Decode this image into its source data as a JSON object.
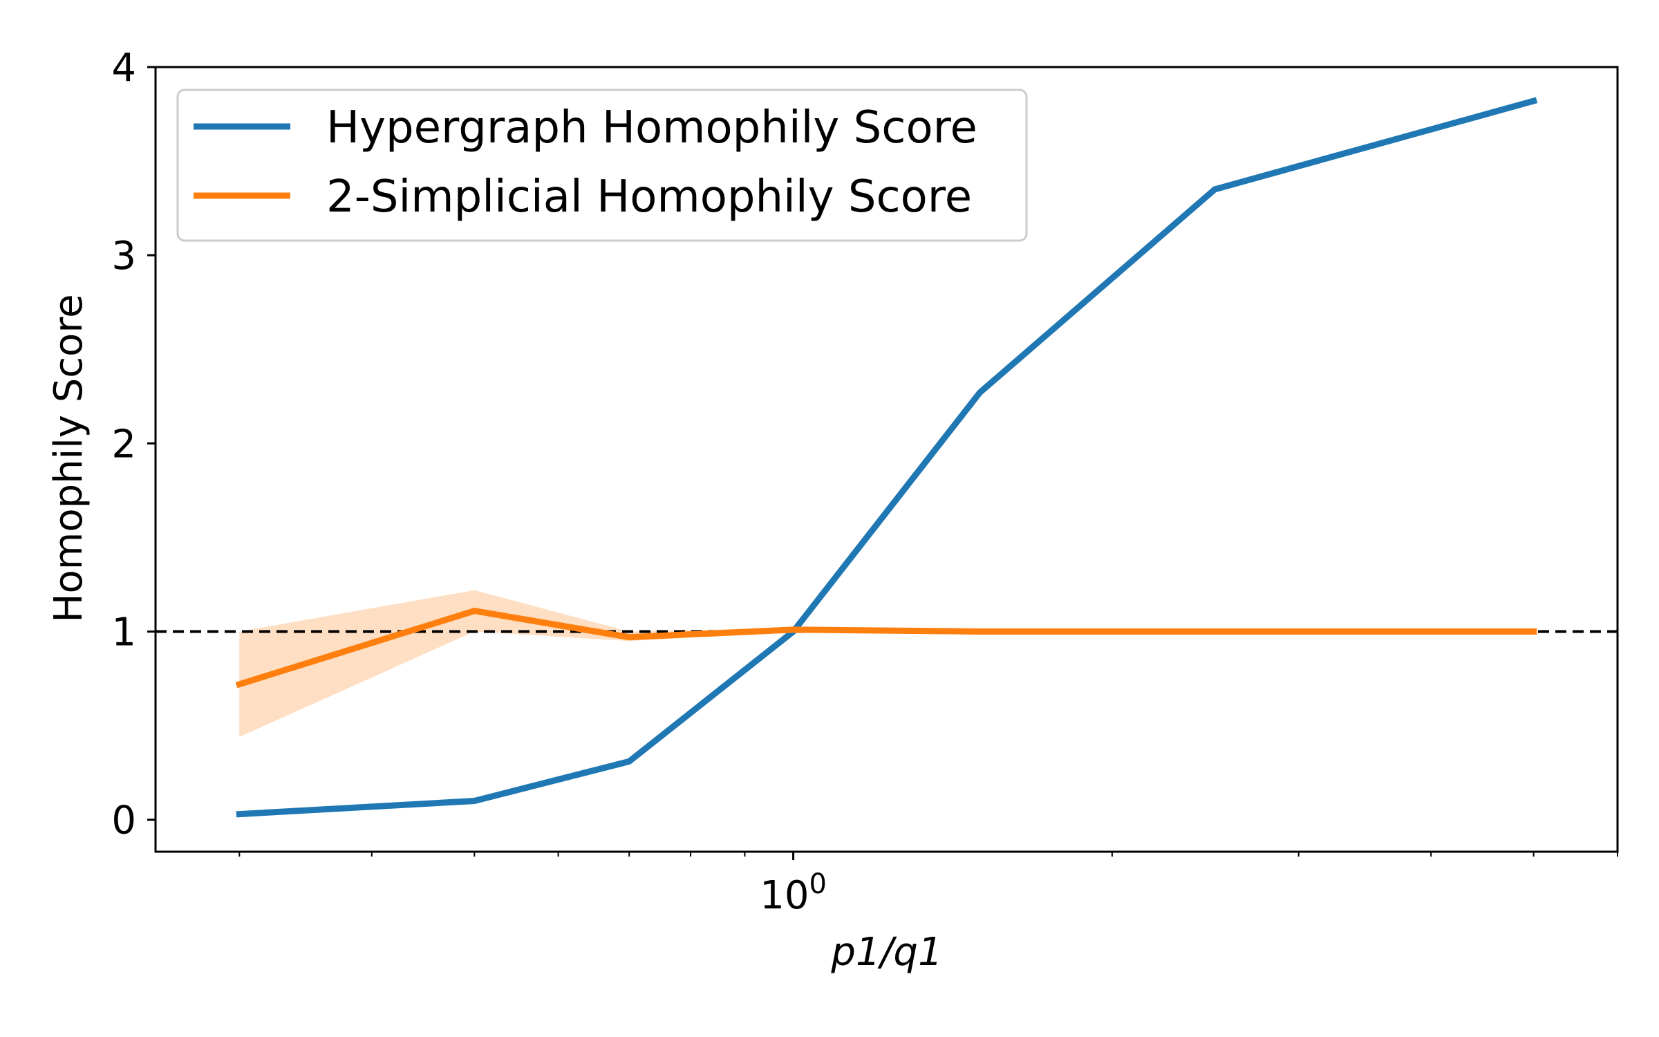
{
  "chart_data": {
    "type": "line",
    "title": "",
    "xlabel": "p1/q1",
    "ylabel": "Homophily Score",
    "xscale": "log",
    "xlim": [
      0.25,
      6.0
    ],
    "ylim": [
      -0.17,
      4.0
    ],
    "x_tick_labels": [
      {
        "value": 1,
        "base": "10",
        "exponent": "0"
      }
    ],
    "y_ticks": [
      0,
      1,
      2,
      3,
      4
    ],
    "y_tick_labels": [
      "0",
      "1",
      "2",
      "3",
      "4"
    ],
    "grid": false,
    "legend_position": "top-left",
    "reference_line": {
      "y": 1,
      "style": "dashed",
      "color": "#000000"
    },
    "x": [
      0.3,
      0.5,
      0.7,
      1.0,
      1.5,
      2.5,
      5.0
    ],
    "series": [
      {
        "name": "Hypergraph Homophily Score",
        "color": "#1f77b4",
        "values": [
          0.03,
          0.1,
          0.31,
          1.0,
          2.27,
          3.35,
          3.82
        ]
      },
      {
        "name": "2-Simplicial Homophily Score",
        "color": "#ff7f0e",
        "values": [
          0.72,
          1.11,
          0.97,
          1.01,
          1.0,
          1.0,
          1.0
        ],
        "band_lower": [
          0.44,
          1.0,
          0.95,
          1.0,
          1.0,
          1.0,
          1.0
        ],
        "band_upper": [
          1.0,
          1.22,
          1.0,
          1.02,
          1.0,
          1.0,
          1.0
        ],
        "band_color": "#ffdfc3"
      }
    ]
  }
}
